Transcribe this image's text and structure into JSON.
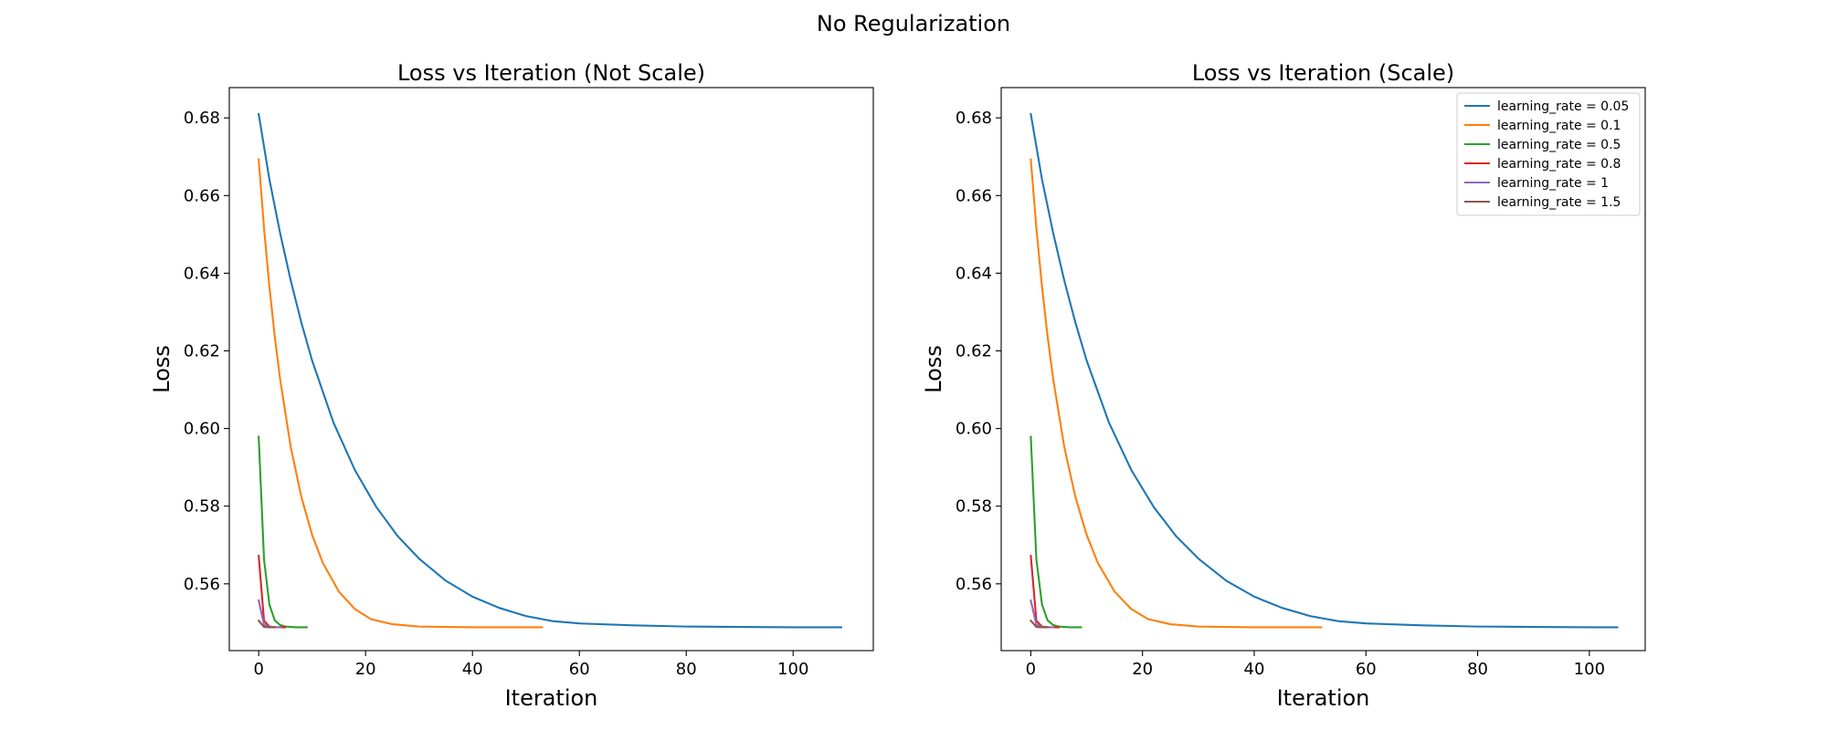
{
  "figure": {
    "suptitle": "No Regularization"
  },
  "chart_data": [
    {
      "type": "line",
      "title": "Loss vs Iteration (Not Scale)",
      "xlabel": "Iteration",
      "ylabel": "Loss",
      "xlim": [
        -5.5,
        115
      ],
      "ylim": [
        0.5428,
        0.6878
      ],
      "xticks": [
        0,
        20,
        40,
        60,
        80,
        100
      ],
      "yticks": [
        0.56,
        0.58,
        0.6,
        0.62,
        0.64,
        0.66,
        0.68
      ],
      "ytick_labels": [
        "0.56",
        "0.58",
        "0.60",
        "0.62",
        "0.64",
        "0.66",
        "0.68"
      ],
      "grid": false,
      "legend": "none",
      "series": [
        {
          "name": "learning_rate = 0.05",
          "color": "#1f77b4",
          "x": [
            0,
            2,
            4,
            6,
            8,
            10,
            14,
            18,
            22,
            26,
            30,
            35,
            40,
            45,
            50,
            55,
            60,
            70,
            80,
            90,
            100,
            109
          ],
          "y": [
            0.681,
            0.6642,
            0.6504,
            0.6381,
            0.6272,
            0.6175,
            0.6015,
            0.5893,
            0.5798,
            0.5723,
            0.5665,
            0.5608,
            0.5567,
            0.5538,
            0.5517,
            0.5504,
            0.5498,
            0.5493,
            0.549,
            0.5489,
            0.5488,
            0.5488
          ]
        },
        {
          "name": "learning_rate = 0.1",
          "color": "#ff7f0e",
          "x": [
            0,
            1,
            2,
            3,
            4,
            6,
            8,
            10,
            12,
            15,
            18,
            21,
            25,
            30,
            35,
            40,
            45,
            53
          ],
          "y": [
            0.6693,
            0.6516,
            0.6366,
            0.6238,
            0.6128,
            0.5952,
            0.5823,
            0.5726,
            0.5654,
            0.558,
            0.5535,
            0.5509,
            0.5496,
            0.549,
            0.5489,
            0.5488,
            0.5488,
            0.5488
          ]
        },
        {
          "name": "learning_rate = 0.5",
          "color": "#2ca02c",
          "x": [
            0,
            1,
            2,
            3,
            4,
            5,
            6,
            7,
            8,
            9
          ],
          "y": [
            0.5979,
            0.5663,
            0.5547,
            0.5506,
            0.5494,
            0.549,
            0.5489,
            0.5488,
            0.5488,
            0.5488
          ]
        },
        {
          "name": "learning_rate = 0.8",
          "color": "#d62728",
          "x": [
            0,
            1,
            2,
            3,
            4,
            5
          ],
          "y": [
            0.5672,
            0.5505,
            0.549,
            0.5488,
            0.5488,
            0.5488
          ]
        },
        {
          "name": "learning_rate = 1",
          "color": "#9467bd",
          "x": [
            0,
            1,
            2,
            3,
            4
          ],
          "y": [
            0.5557,
            0.5495,
            0.5489,
            0.5488,
            0.5488
          ]
        },
        {
          "name": "learning_rate = 1.5",
          "color": "#8c564b",
          "x": [
            0,
            1,
            2,
            3
          ],
          "y": [
            0.5505,
            0.5489,
            0.5488,
            0.5488
          ]
        }
      ]
    },
    {
      "type": "line",
      "title": "Loss vs Iteration (Scale)",
      "xlabel": "Iteration",
      "ylabel": "Loss",
      "xlim": [
        -5.3,
        110
      ],
      "ylim": [
        0.5428,
        0.6878
      ],
      "xticks": [
        0,
        20,
        40,
        60,
        80,
        100
      ],
      "yticks": [
        0.56,
        0.58,
        0.6,
        0.62,
        0.64,
        0.66,
        0.68
      ],
      "ytick_labels": [
        "0.56",
        "0.58",
        "0.60",
        "0.62",
        "0.64",
        "0.66",
        "0.68"
      ],
      "grid": false,
      "legend": "top-right",
      "series": [
        {
          "name": "learning_rate = 0.05",
          "color": "#1f77b4",
          "x": [
            0,
            2,
            4,
            6,
            8,
            10,
            14,
            18,
            22,
            26,
            30,
            35,
            40,
            45,
            50,
            55,
            60,
            70,
            80,
            90,
            100,
            105
          ],
          "y": [
            0.681,
            0.6642,
            0.6504,
            0.6381,
            0.6272,
            0.6175,
            0.6015,
            0.5893,
            0.5798,
            0.5723,
            0.5665,
            0.5608,
            0.5567,
            0.5538,
            0.5517,
            0.5504,
            0.5498,
            0.5493,
            0.549,
            0.5489,
            0.5488,
            0.5488
          ]
        },
        {
          "name": "learning_rate = 0.1",
          "color": "#ff7f0e",
          "x": [
            0,
            1,
            2,
            3,
            4,
            6,
            8,
            10,
            12,
            15,
            18,
            21,
            25,
            30,
            35,
            40,
            45,
            52
          ],
          "y": [
            0.6693,
            0.6516,
            0.6366,
            0.6238,
            0.6128,
            0.5952,
            0.5823,
            0.5726,
            0.5654,
            0.558,
            0.5535,
            0.5509,
            0.5496,
            0.549,
            0.5489,
            0.5488,
            0.5488,
            0.5488
          ]
        },
        {
          "name": "learning_rate = 0.5",
          "color": "#2ca02c",
          "x": [
            0,
            1,
            2,
            3,
            4,
            5,
            6,
            7,
            8,
            9
          ],
          "y": [
            0.5979,
            0.5663,
            0.5547,
            0.5506,
            0.5494,
            0.549,
            0.5489,
            0.5488,
            0.5488,
            0.5488
          ]
        },
        {
          "name": "learning_rate = 0.8",
          "color": "#d62728",
          "x": [
            0,
            1,
            2,
            3,
            4,
            5
          ],
          "y": [
            0.5672,
            0.5505,
            0.549,
            0.5488,
            0.5488,
            0.5488
          ]
        },
        {
          "name": "learning_rate = 1",
          "color": "#9467bd",
          "x": [
            0,
            1,
            2,
            3,
            4
          ],
          "y": [
            0.5557,
            0.5495,
            0.5489,
            0.5488,
            0.5488
          ]
        },
        {
          "name": "learning_rate = 1.5",
          "color": "#8c564b",
          "x": [
            0,
            1,
            2,
            3
          ],
          "y": [
            0.5505,
            0.5489,
            0.5488,
            0.5488
          ]
        }
      ]
    }
  ]
}
